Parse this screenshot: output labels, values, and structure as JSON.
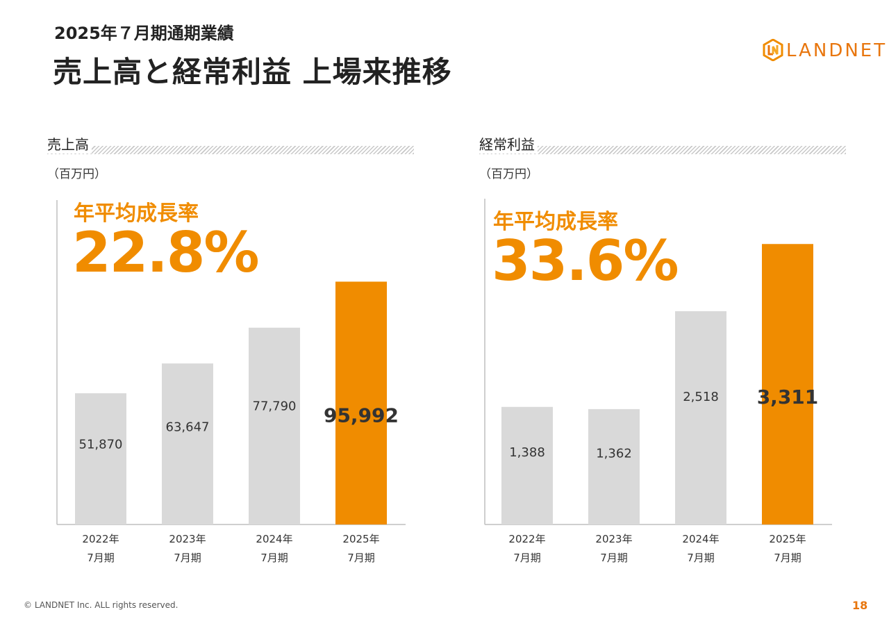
{
  "header": {
    "subtitle": "2025年７月期通期業績",
    "title": "売上高と経常利益 上場来推移"
  },
  "logo": {
    "text": "LANDNET",
    "color": "#e8760e"
  },
  "colors": {
    "accent": "#f08c00",
    "bar_gray": "#d9d9d9",
    "axis": "#bfbfbf"
  },
  "panels": {
    "sales": {
      "title": "売上高",
      "unit": "（百万円）",
      "cagr_label": "年平均成長率",
      "cagr_value": "22.8%"
    },
    "profit": {
      "title": "経常利益",
      "unit": "（百万円）",
      "cagr_label": "年平均成長率",
      "cagr_value": "33.6%"
    }
  },
  "chart_data": [
    {
      "type": "bar",
      "title": "売上高",
      "unit": "百万円",
      "categories": [
        "2022年\n7月期",
        "2023年\n7月期",
        "2024年\n7月期",
        "2025年\n7月期"
      ],
      "values": [
        51870,
        63647,
        77790,
        95992
      ],
      "value_labels": [
        "51,870",
        "63,647",
        "77,790",
        "95,992"
      ],
      "highlight_index": 3,
      "ylim": [
        0,
        120000
      ]
    },
    {
      "type": "bar",
      "title": "経常利益",
      "unit": "百万円",
      "categories": [
        "2022年\n7月期",
        "2023年\n7月期",
        "2024年\n7月期",
        "2025年\n7月期"
      ],
      "values": [
        1388,
        1362,
        2518,
        3311
      ],
      "value_labels": [
        "1,388",
        "1,362",
        "2,518",
        "3,311"
      ],
      "highlight_index": 3,
      "ylim": [
        0,
        3600
      ]
    }
  ],
  "footer": {
    "copyright": "© LANDNET Inc. ALL rights reserved.",
    "page": "18"
  }
}
